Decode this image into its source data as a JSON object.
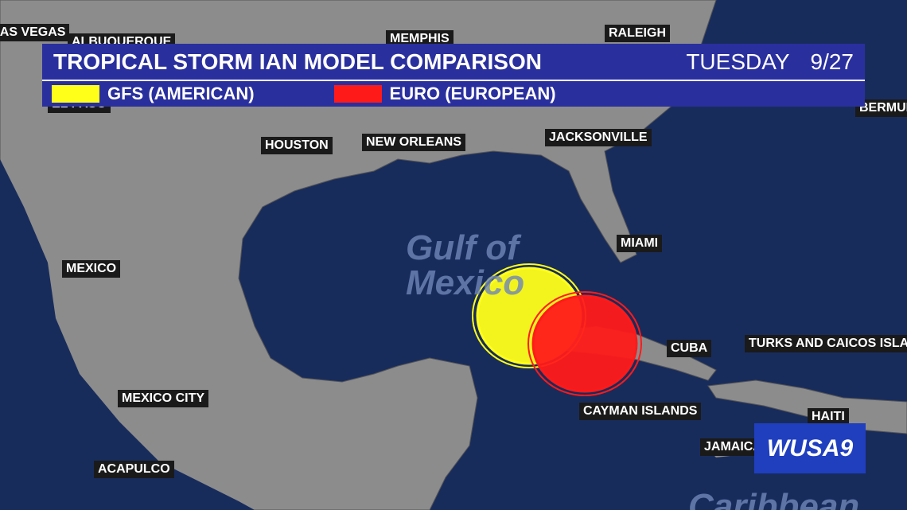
{
  "header": {
    "title": "TROPICAL STORM IAN MODEL COMPARISON",
    "day": "TUESDAY",
    "date": "9/27"
  },
  "legend": [
    {
      "label": "GFS (AMERICAN)",
      "color": "#ffff1a"
    },
    {
      "label": "EURO (EUROPEAN)",
      "color": "#ff1a1a"
    }
  ],
  "map": {
    "water_label": [
      "Gulf of",
      "Mexico"
    ],
    "sea_label": "Caribbean",
    "places": [
      "LAS VEGAS",
      "ALBUQUERQUE",
      "MEMPHIS",
      "RALEIGH",
      "EL PASO",
      "BERMUDA",
      "HOUSTON",
      "NEW ORLEANS",
      "JACKSONVILLE",
      "MIAMI",
      "MEXICO",
      "MEXICO CITY",
      "ACAPULCO",
      "CAYMAN ISLANDS",
      "CUBA",
      "TURKS AND CAICOS ISLANDS",
      "HAITI",
      "JAMAICA"
    ]
  },
  "logo": "WUSA9"
}
